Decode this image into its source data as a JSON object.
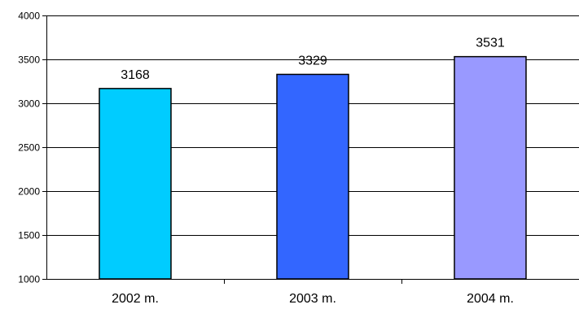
{
  "chart_data": {
    "type": "bar",
    "categories": [
      "2002 m.",
      "2003 m.",
      "2004 m."
    ],
    "values": [
      3168,
      3329,
      3531
    ],
    "ylim": [
      1000,
      4000
    ],
    "yticks": [
      1000,
      1500,
      2000,
      2500,
      3000,
      3500,
      4000
    ],
    "grid": true,
    "legend": "none",
    "colors": [
      "#00ccff",
      "#3366ff",
      "#9999ff"
    ]
  }
}
